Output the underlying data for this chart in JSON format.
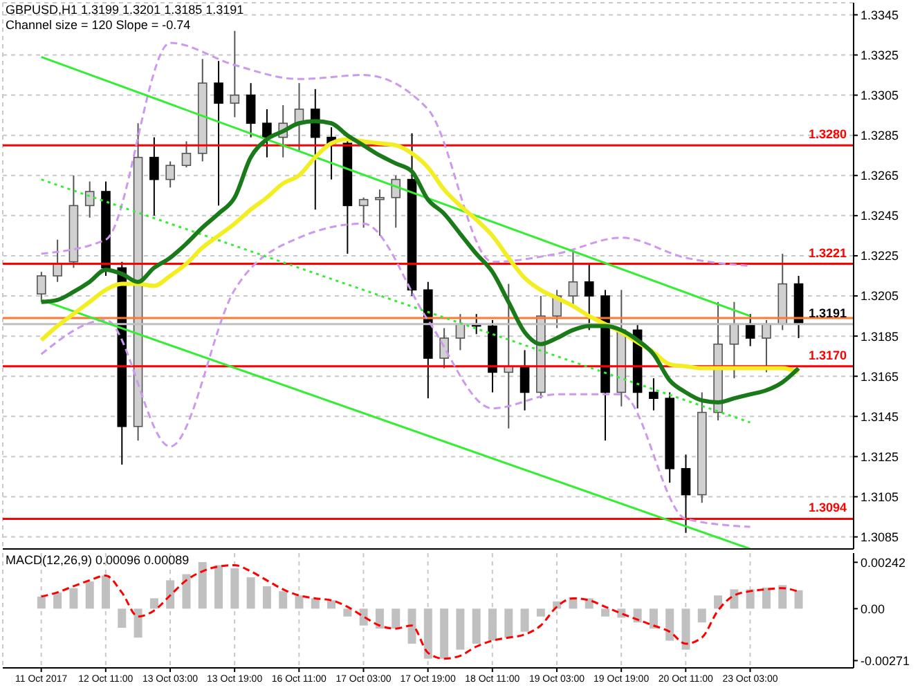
{
  "chart_data": [
    {
      "type": "candlestick",
      "title": "GBPUSD,H1  1.3199 1.3201 1.3185 1.3191",
      "subtitle": "Channel size = 120 Slope = -0.74",
      "categories": [
        "11 Oct 2017",
        null,
        null,
        null,
        "12 Oct 11:00",
        null,
        null,
        null,
        "13 Oct 03:00",
        null,
        null,
        null,
        "13 Oct 19:00",
        null,
        null,
        null,
        "16 Oct 11:00",
        null,
        null,
        null,
        "17 Oct 03:00",
        null,
        null,
        null,
        "17 Oct 19:00",
        null,
        null,
        null,
        "18 Oct 11:00",
        null,
        null,
        null,
        "19 Oct 03:00",
        null,
        null,
        null,
        "19 Oct 19:00",
        null,
        null,
        null,
        "20 Oct 11:00",
        null,
        null,
        null,
        "23 Oct 03:00",
        null,
        null,
        null
      ],
      "ohlc": [
        [
          1.3206,
          1.3217,
          1.3202,
          1.3215
        ],
        [
          1.3215,
          1.3233,
          1.3212,
          1.3221
        ],
        [
          1.3222,
          1.3265,
          1.3219,
          1.325
        ],
        [
          1.325,
          1.3262,
          1.3244,
          1.3257
        ],
        [
          1.3257,
          1.3262,
          1.3215,
          1.3219
        ],
        [
          1.3219,
          1.3222,
          1.3121,
          1.314
        ],
        [
          1.314,
          1.3291,
          1.3133,
          1.3274
        ],
        [
          1.3274,
          1.3284,
          1.3245,
          1.3263
        ],
        [
          1.3263,
          1.3272,
          1.3259,
          1.327
        ],
        [
          1.327,
          1.3282,
          1.3269,
          1.3276
        ],
        [
          1.3276,
          1.3323,
          1.3272,
          1.3311
        ],
        [
          1.3311,
          1.3322,
          1.325,
          1.3301
        ],
        [
          1.3301,
          1.3337,
          1.3294,
          1.3305
        ],
        [
          1.3305,
          1.3311,
          1.3284,
          1.3291
        ],
        [
          1.3291,
          1.3298,
          1.3274,
          1.3284
        ],
        [
          1.3284,
          1.33,
          1.3274,
          1.3291
        ],
        [
          1.3291,
          1.3311,
          1.3277,
          1.3298
        ],
        [
          1.3298,
          1.3308,
          1.3248,
          1.3284
        ],
        [
          1.3284,
          1.3289,
          1.3263,
          1.3281
        ],
        [
          1.3281,
          1.3284,
          1.3226,
          1.325
        ],
        [
          1.325,
          1.3254,
          1.3239,
          1.3253
        ],
        [
          1.3253,
          1.3258,
          1.3235,
          1.3254
        ],
        [
          1.3254,
          1.3265,
          1.3239,
          1.3263
        ],
        [
          1.3263,
          1.3286,
          1.3205,
          1.3208
        ],
        [
          1.3208,
          1.3212,
          1.3154,
          1.3174
        ],
        [
          1.3174,
          1.3189,
          1.3169,
          1.3184
        ],
        [
          1.3184,
          1.3196,
          1.3178,
          1.3191
        ],
        [
          1.3191,
          1.3196,
          1.3186,
          1.319
        ],
        [
          1.319,
          1.3193,
          1.3157,
          1.3167
        ],
        [
          1.3167,
          1.3211,
          1.3139,
          1.317
        ],
        [
          1.317,
          1.3178,
          1.3148,
          1.3157
        ],
        [
          1.3157,
          1.3205,
          1.3154,
          1.3195
        ],
        [
          1.3195,
          1.3208,
          1.3189,
          1.3205
        ],
        [
          1.3205,
          1.3228,
          1.32,
          1.3212
        ],
        [
          1.3212,
          1.3221,
          1.3188,
          1.3205
        ],
        [
          1.3205,
          1.3208,
          1.3133,
          1.3157
        ],
        [
          1.3157,
          1.3208,
          1.315,
          1.3188
        ],
        [
          1.3188,
          1.3191,
          1.3149,
          1.3157
        ],
        [
          1.3157,
          1.3164,
          1.3148,
          1.3154
        ],
        [
          1.3154,
          1.3157,
          1.3112,
          1.3119
        ],
        [
          1.3119,
          1.3126,
          1.3087,
          1.3106
        ],
        [
          1.3106,
          1.3157,
          1.3102,
          1.3147
        ],
        [
          1.3147,
          1.3202,
          1.3143,
          1.3181
        ],
        [
          1.3181,
          1.3202,
          1.3164,
          1.3191
        ],
        [
          1.3191,
          1.3196,
          1.318,
          1.3184
        ],
        [
          1.3184,
          1.3193,
          1.3167,
          1.3191
        ],
        [
          1.3191,
          1.3226,
          1.3188,
          1.3211
        ],
        [
          1.3211,
          1.3215,
          1.3184,
          1.3191
        ]
      ],
      "series": [
        {
          "type": "line",
          "color": "#cc99ee",
          "line_style": "dashed",
          "x": [
            "11 Oct 2017",
            "12 Oct 11:00",
            "13 Oct 03:00",
            "13 Oct 19:00",
            "16 Oct 11:00",
            "17 Oct 03:00",
            "17 Oct 19:00",
            "18 Oct 11:00",
            "19 Oct 03:00",
            "19 Oct 19:00",
            "20 Oct 11:00",
            "23 Oct 03:00"
          ],
          "values": [
            1.3226,
            1.3233,
            1.3331,
            1.332,
            1.3313,
            1.3315,
            1.3298,
            1.3222,
            1.3226,
            1.3234,
            1.3224,
            1.322
          ]
        },
        {
          "type": "line",
          "color": "#cc99ee",
          "line_style": "dashed",
          "x": [
            "11 Oct 2017",
            "12 Oct 11:00",
            "13 Oct 03:00",
            "13 Oct 19:00",
            "16 Oct 11:00",
            "17 Oct 03:00",
            "17 Oct 19:00",
            "18 Oct 11:00",
            "19 Oct 03:00",
            "19 Oct 19:00",
            "20 Oct 11:00",
            "23 Oct 03:00"
          ],
          "values": [
            1.3176,
            1.3193,
            1.313,
            1.3208,
            1.3234,
            1.3241,
            1.3193,
            1.3149,
            1.3156,
            1.3156,
            1.3094,
            1.309
          ]
        },
        {
          "type": "line",
          "color": "#33ee33",
          "line_style": "solid",
          "x": [
            "11 Oct 2017",
            "23 Oct 03:00"
          ],
          "values": [
            1.3324,
            1.3195
          ]
        },
        {
          "type": "line",
          "color": "#33ee33",
          "line_style": "dotted",
          "x": [
            "11 Oct 2017",
            "23 Oct 03:00"
          ],
          "values": [
            1.3263,
            1.3142
          ]
        },
        {
          "type": "line",
          "color": "#33ee33",
          "line_style": "solid",
          "x": [
            "11 Oct 2017",
            "23 Oct 03:00"
          ],
          "values": [
            1.3203,
            1.3079
          ]
        },
        {
          "type": "line",
          "color": "#f2ee22",
          "line_style": "solid",
          "values": [
            1.3183,
            1.319,
            1.3196,
            1.3202,
            1.3208,
            1.3211,
            1.3211,
            1.321,
            1.3215,
            1.3221,
            1.3229,
            1.3235,
            1.3241,
            1.3248,
            1.3254,
            1.3261,
            1.3265,
            1.3274,
            1.3281,
            1.3283,
            1.3282,
            1.3281,
            1.328,
            1.3276,
            1.3269,
            1.3258,
            1.325,
            1.3243,
            1.3235,
            1.3224,
            1.3214,
            1.3208,
            1.3204,
            1.32,
            1.3195,
            1.3191,
            1.3187,
            1.3182,
            1.3177,
            1.3171,
            1.317,
            1.3169,
            1.3169,
            1.3169,
            1.3169,
            1.3169,
            1.3169,
            1.3167
          ]
        },
        {
          "type": "line",
          "color": "#1a7a1a",
          "line_style": "solid",
          "values": [
            1.3202,
            1.3203,
            1.3207,
            1.3212,
            1.3218,
            1.3216,
            1.3212,
            1.3219,
            1.3224,
            1.3231,
            1.3239,
            1.3246,
            1.3254,
            1.3274,
            1.3283,
            1.3287,
            1.3291,
            1.3292,
            1.3291,
            1.3285,
            1.328,
            1.3275,
            1.3271,
            1.3267,
            1.3253,
            1.3246,
            1.3236,
            1.3226,
            1.3217,
            1.3202,
            1.3187,
            1.3181,
            1.3184,
            1.3188,
            1.319,
            1.319,
            1.3188,
            1.3183,
            1.3176,
            1.3163,
            1.3157,
            1.3153,
            1.3152,
            1.3154,
            1.3156,
            1.3158,
            1.3162,
            1.3169
          ]
        }
      ],
      "ylim": [
        1.3079,
        1.3351
      ],
      "yticks": [
        1.3345,
        1.3325,
        1.3305,
        1.3285,
        1.3265,
        1.3245,
        1.3225,
        1.3205,
        1.3185,
        1.3165,
        1.3145,
        1.3125,
        1.3105,
        1.3085
      ],
      "ref_lines": [
        {
          "axis": "y",
          "value": 1.328,
          "label": "1.3280",
          "color": "#ff0000"
        },
        {
          "axis": "y",
          "value": 1.3221,
          "label": "1.3221",
          "color": "#ff0000"
        },
        {
          "axis": "y",
          "value": 1.317,
          "label": "1.3170",
          "color": "#ff0000"
        },
        {
          "axis": "y",
          "value": 1.3094,
          "label": "1.3094",
          "color": "#ff0000"
        },
        {
          "axis": "y",
          "value": 1.3194,
          "color": "#ff7733"
        },
        {
          "axis": "y",
          "value": 1.3191,
          "label": "1.3191",
          "color": "#c0c0c0"
        }
      ],
      "grid": true,
      "tick_labels": "y",
      "marker": "none"
    },
    {
      "type": "bar",
      "title": "MACD(12,26,9) 0.00096 0.00089",
      "categories": [
        "11 Oct 2017",
        null,
        null,
        null,
        "12 Oct 11:00",
        null,
        null,
        null,
        "13 Oct 03:00",
        null,
        null,
        null,
        "13 Oct 19:00",
        null,
        null,
        null,
        "16 Oct 11:00",
        null,
        null,
        null,
        "17 Oct 03:00",
        null,
        null,
        null,
        "17 Oct 19:00",
        null,
        null,
        null,
        "18 Oct 11:00",
        null,
        null,
        null,
        "19 Oct 03:00",
        null,
        null,
        null,
        "19 Oct 19:00",
        null,
        null,
        null,
        "20 Oct 11:00",
        null,
        null,
        null,
        "23 Oct 03:00",
        null,
        null,
        null
      ],
      "series": [
        {
          "color": "#c0c0c0",
          "values": [
            0.00063,
            0.00085,
            0.00107,
            0.00142,
            0.00173,
            -0.001,
            -0.00151,
            0.00054,
            0.00148,
            0.0018,
            0.00243,
            0.00227,
            0.00211,
            0.00164,
            0.00117,
            0.00091,
            0.00069,
            0.00054,
            0.00044,
            -0.00041,
            -0.00088,
            -0.00104,
            -0.00104,
            -0.00183,
            -0.00261,
            -0.00261,
            -0.00214,
            -0.00183,
            -0.00167,
            -0.00151,
            -0.0012,
            -0.00041,
            0.00038,
            0.0006,
            0.00054,
            -0.00041,
            -0.00047,
            -0.00072,
            -0.00104,
            -0.00167,
            -0.00214,
            -0.00072,
            0.00069,
            0.00101,
            0.00101,
            0.0011,
            0.00123,
            0.00096
          ]
        },
        {
          "type": "line",
          "color": "#ff0000",
          "line_style": "dashed",
          "values": [
            0.00063,
            0.00085,
            0.00117,
            0.00148,
            0.00173,
            0.00085,
            -0.00041,
            -0.0001,
            0.00069,
            0.00148,
            0.00195,
            0.0022,
            0.00227,
            0.00195,
            0.00148,
            0.00101,
            0.00069,
            0.00054,
            0.00044,
            0.0001,
            -0.00041,
            -0.00088,
            -0.00104,
            -0.00088,
            -0.0023,
            -0.00261,
            -0.00246,
            -0.00198,
            -0.00167,
            -0.00151,
            -0.00135,
            -0.00088,
            0.0001,
            0.00054,
            0.00044,
            0.0001,
            -0.00025,
            -0.00057,
            -0.00088,
            -0.0012,
            -0.00183,
            -0.00151,
            -0.0001,
            0.00069,
            0.00091,
            0.00101,
            0.00107,
            0.00089
          ]
        }
      ],
      "ylim": [
        -0.00309,
        0.0029
      ],
      "yticks": [
        0.00242,
        {
          "value": 0,
          "label": "0.00"
        },
        -0.00271
      ],
      "grid": "x",
      "marker": "none"
    }
  ]
}
